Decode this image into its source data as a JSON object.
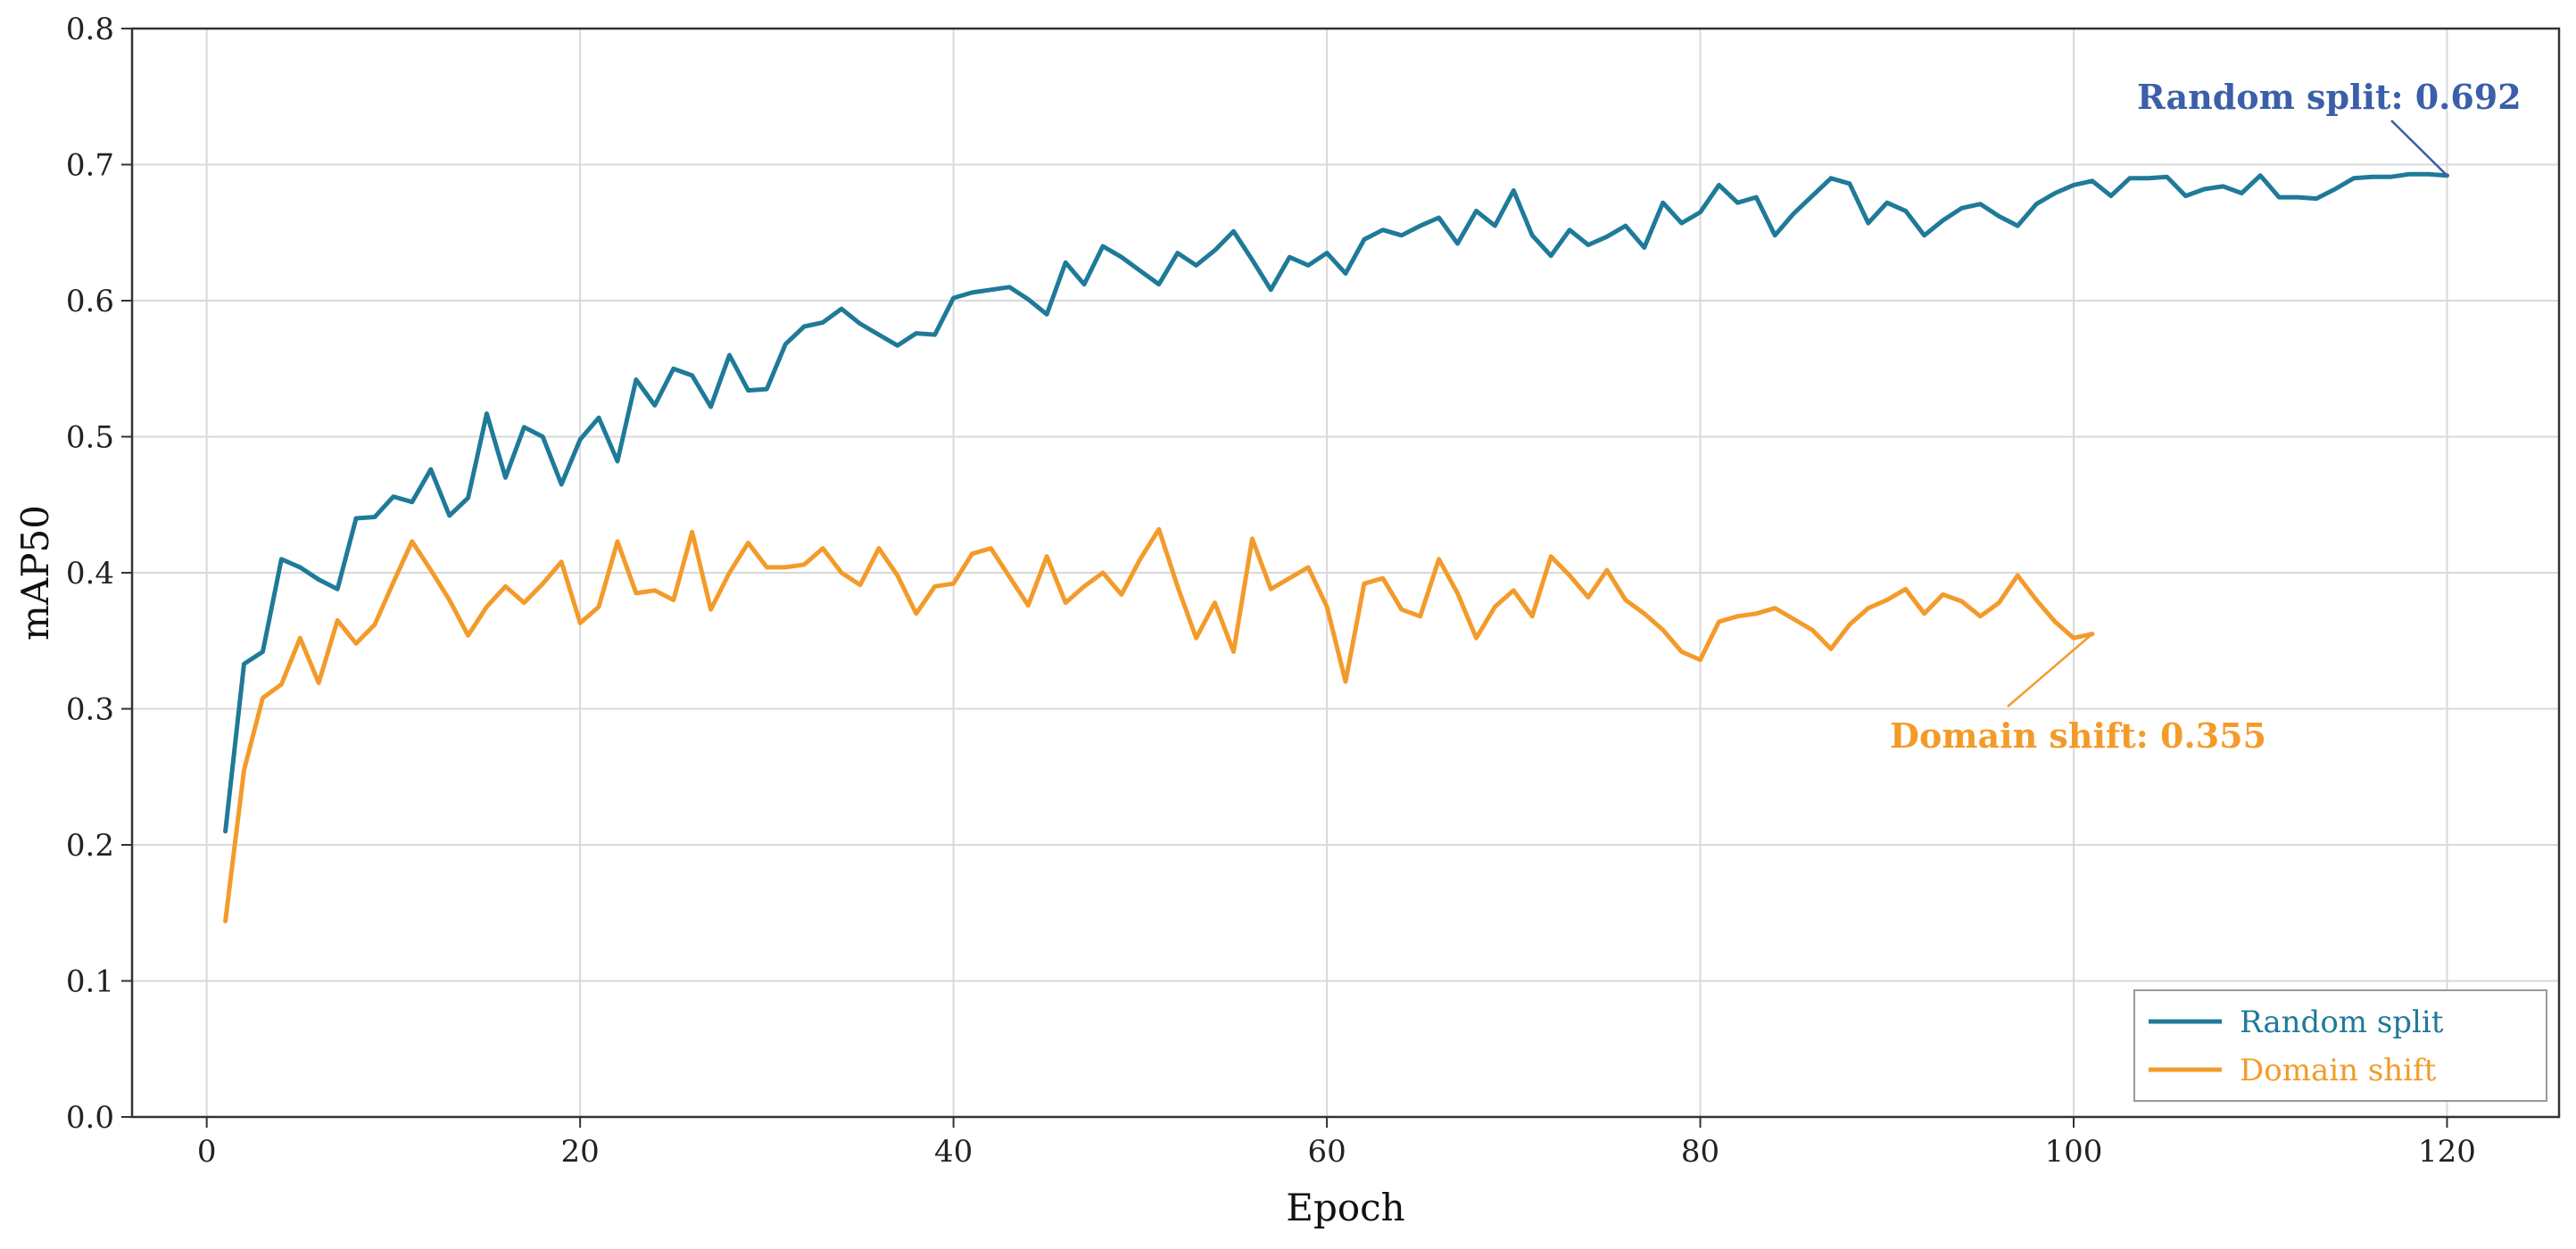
{
  "chart_data": {
    "type": "line",
    "xlabel": "Epoch",
    "ylabel": "mAP50",
    "xlim": [
      -4,
      126
    ],
    "ylim": [
      0,
      0.8
    ],
    "xticks": [
      0,
      20,
      40,
      60,
      80,
      100,
      120
    ],
    "yticks": [
      0.0,
      0.1,
      0.2,
      0.3,
      0.4,
      0.5,
      0.6,
      0.7,
      0.8
    ],
    "xtick_labels": [
      "0",
      "20",
      "40",
      "60",
      "80",
      "100",
      "120"
    ],
    "ytick_labels": [
      "0.0",
      "0.1",
      "0.2",
      "0.3",
      "0.4",
      "0.5",
      "0.6",
      "0.7",
      "0.8"
    ],
    "grid": true,
    "legend_position": "bottom-right",
    "series": [
      {
        "name": "Random split",
        "color": "#1f7a99",
        "x_start": 1,
        "values": [
          0.21,
          0.333,
          0.342,
          0.41,
          0.404,
          0.395,
          0.388,
          0.44,
          0.441,
          0.456,
          0.452,
          0.476,
          0.442,
          0.455,
          0.517,
          0.47,
          0.507,
          0.5,
          0.465,
          0.498,
          0.514,
          0.482,
          0.542,
          0.523,
          0.55,
          0.545,
          0.522,
          0.56,
          0.534,
          0.535,
          0.568,
          0.581,
          0.584,
          0.594,
          0.583,
          0.575,
          0.567,
          0.576,
          0.575,
          0.602,
          0.606,
          0.608,
          0.61,
          0.601,
          0.59,
          0.628,
          0.612,
          0.64,
          0.632,
          0.622,
          0.612,
          0.635,
          0.626,
          0.637,
          0.651,
          0.63,
          0.608,
          0.632,
          0.626,
          0.635,
          0.62,
          0.645,
          0.652,
          0.648,
          0.655,
          0.661,
          0.642,
          0.666,
          0.655,
          0.681,
          0.648,
          0.633,
          0.652,
          0.641,
          0.647,
          0.655,
          0.639,
          0.672,
          0.657,
          0.665,
          0.685,
          0.672,
          0.676,
          0.648,
          0.664,
          0.677,
          0.69,
          0.686,
          0.657,
          0.672,
          0.666,
          0.648,
          0.659,
          0.668,
          0.671,
          0.662,
          0.655,
          0.671,
          0.679,
          0.685,
          0.688,
          0.677,
          0.69,
          0.69,
          0.691,
          0.677,
          0.682,
          0.684,
          0.679,
          0.692,
          0.676,
          0.676,
          0.675,
          0.682,
          0.69,
          0.691,
          0.691,
          0.693,
          0.693,
          0.692
        ]
      },
      {
        "name": "Domain shift",
        "color": "#f39b2a",
        "x_start": 1,
        "values": [
          0.144,
          0.255,
          0.308,
          0.318,
          0.352,
          0.319,
          0.365,
          0.348,
          0.362,
          0.393,
          0.423,
          0.402,
          0.38,
          0.354,
          0.375,
          0.39,
          0.378,
          0.392,
          0.408,
          0.363,
          0.375,
          0.423,
          0.385,
          0.387,
          0.38,
          0.43,
          0.373,
          0.4,
          0.422,
          0.404,
          0.404,
          0.406,
          0.418,
          0.4,
          0.391,
          0.418,
          0.398,
          0.37,
          0.39,
          0.392,
          0.414,
          0.418,
          0.397,
          0.376,
          0.412,
          0.378,
          0.39,
          0.4,
          0.384,
          0.41,
          0.432,
          0.39,
          0.352,
          0.378,
          0.342,
          0.425,
          0.388,
          0.396,
          0.404,
          0.375,
          0.32,
          0.392,
          0.396,
          0.373,
          0.368,
          0.41,
          0.385,
          0.352,
          0.375,
          0.387,
          0.368,
          0.412,
          0.398,
          0.382,
          0.402,
          0.38,
          0.37,
          0.358,
          0.342,
          0.336,
          0.364,
          0.368,
          0.37,
          0.374,
          0.366,
          0.358,
          0.344,
          0.362,
          0.374,
          0.38,
          0.388,
          0.37,
          0.384,
          0.379,
          0.368,
          0.378,
          0.398,
          0.38,
          0.364,
          0.352,
          0.355
        ]
      }
    ],
    "annotations": [
      {
        "text": "Random split: 0.692",
        "series": 0,
        "x": 120,
        "y": 0.692,
        "color": "#3b5fa8"
      },
      {
        "text": "Domain shift: 0.355",
        "series": 1,
        "x": 101,
        "y": 0.355,
        "color": "#f39b2a"
      }
    ]
  }
}
